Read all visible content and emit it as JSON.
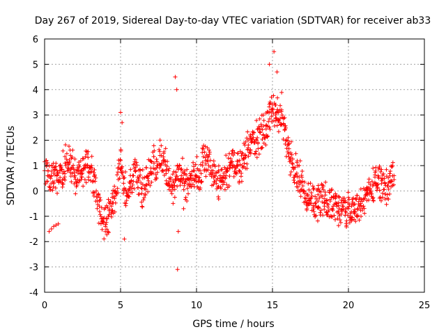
{
  "chart_data": {
    "type": "scatter",
    "title": "Day 267 of 2019, Sidereal Day-to-day VTEC variation (SDTVAR) for receiver ab33",
    "xlabel": "GPS time / hours",
    "ylabel": "SDTVAR / TECUs",
    "xlim": [
      0,
      25
    ],
    "ylim": [
      -4,
      6
    ],
    "x_ticks": [
      0,
      5,
      10,
      15,
      20,
      25
    ],
    "y_ticks": [
      -4,
      -3,
      -2,
      -1,
      0,
      1,
      2,
      3,
      4,
      5,
      6
    ],
    "grid": true,
    "marker": "+",
    "series": [
      {
        "name": "SDTVAR",
        "color": "#ff0000",
        "x": [
          0.0,
          0.2,
          0.4,
          0.6,
          0.8,
          1.0,
          1.2,
          1.4,
          1.6,
          1.8,
          2.0,
          2.2,
          2.4,
          2.6,
          2.8,
          3.0,
          3.2,
          3.4,
          3.6,
          3.8,
          4.0,
          4.2,
          4.4,
          4.6,
          4.8,
          5.0,
          5.2,
          5.4,
          5.6,
          5.8,
          6.0,
          6.2,
          6.4,
          6.6,
          6.8,
          7.0,
          7.2,
          7.4,
          7.6,
          7.8,
          8.0,
          8.2,
          8.4,
          8.6,
          8.8,
          9.0,
          9.2,
          9.4,
          9.6,
          9.8,
          10.0,
          10.2,
          10.4,
          10.6,
          10.8,
          11.0,
          11.2,
          11.4,
          11.6,
          11.8,
          12.0,
          12.2,
          12.4,
          12.6,
          12.8,
          13.0,
          13.2,
          13.4,
          13.6,
          13.8,
          14.0,
          14.2,
          14.4,
          14.6,
          14.8,
          15.0,
          15.2,
          15.4,
          15.6,
          15.8,
          16.0,
          16.2,
          16.4,
          16.6,
          16.8,
          17.0,
          17.2,
          17.4,
          17.6,
          17.8,
          18.0,
          18.2,
          18.4,
          18.6,
          18.8,
          19.0,
          19.2,
          19.4,
          19.6,
          19.8,
          20.0,
          20.2,
          20.4,
          20.6,
          20.8,
          21.0,
          21.2,
          21.4,
          21.6,
          21.8,
          22.0,
          22.2,
          22.4,
          22.6,
          22.8,
          23.0
        ],
        "y": [
          0.8,
          0.6,
          0.5,
          0.7,
          0.6,
          0.8,
          0.7,
          1.0,
          1.1,
          0.9,
          0.6,
          0.7,
          0.8,
          0.9,
          1.0,
          0.9,
          0.4,
          0.0,
          -0.6,
          -1.2,
          -1.4,
          -1.0,
          -0.6,
          -0.3,
          0.1,
          1.2,
          0.5,
          -0.2,
          0.1,
          0.6,
          0.8,
          0.4,
          -0.1,
          0.2,
          0.6,
          0.9,
          1.1,
          1.0,
          1.4,
          1.2,
          0.8,
          0.5,
          0.2,
          0.4,
          0.9,
          0.6,
          0.3,
          0.1,
          0.5,
          0.8,
          0.6,
          0.4,
          1.0,
          1.2,
          1.0,
          0.8,
          0.6,
          0.5,
          0.4,
          0.7,
          0.8,
          0.9,
          1.0,
          0.9,
          0.8,
          1.0,
          1.4,
          1.7,
          2.0,
          1.9,
          2.1,
          2.3,
          2.2,
          2.6,
          3.1,
          3.4,
          3.0,
          2.8,
          3.2,
          2.4,
          1.8,
          1.2,
          0.9,
          0.7,
          0.4,
          0.2,
          -0.1,
          -0.3,
          -0.2,
          -0.5,
          -0.4,
          -0.2,
          -0.3,
          -0.5,
          -0.4,
          -0.6,
          -0.5,
          -0.7,
          -0.6,
          -0.8,
          -0.7,
          -0.6,
          -0.9,
          -0.7,
          -0.5,
          -0.3,
          -0.1,
          0.0,
          0.2,
          0.3,
          0.5,
          0.4,
          0.3,
          0.2,
          0.4,
          0.6
        ],
        "x_isolated": [
          0.3,
          0.45,
          0.6,
          0.75,
          0.9,
          5.0,
          5.1,
          5.25,
          8.6,
          8.7,
          8.8,
          8.75,
          9.15,
          15.1,
          14.8,
          15.3
        ],
        "y_isolated": [
          -1.6,
          -1.5,
          -1.4,
          -1.35,
          -1.3,
          3.1,
          2.7,
          -1.9,
          4.5,
          4.0,
          -1.6,
          -3.1,
          -0.7,
          5.5,
          5.0,
          4.7
        ]
      }
    ]
  }
}
